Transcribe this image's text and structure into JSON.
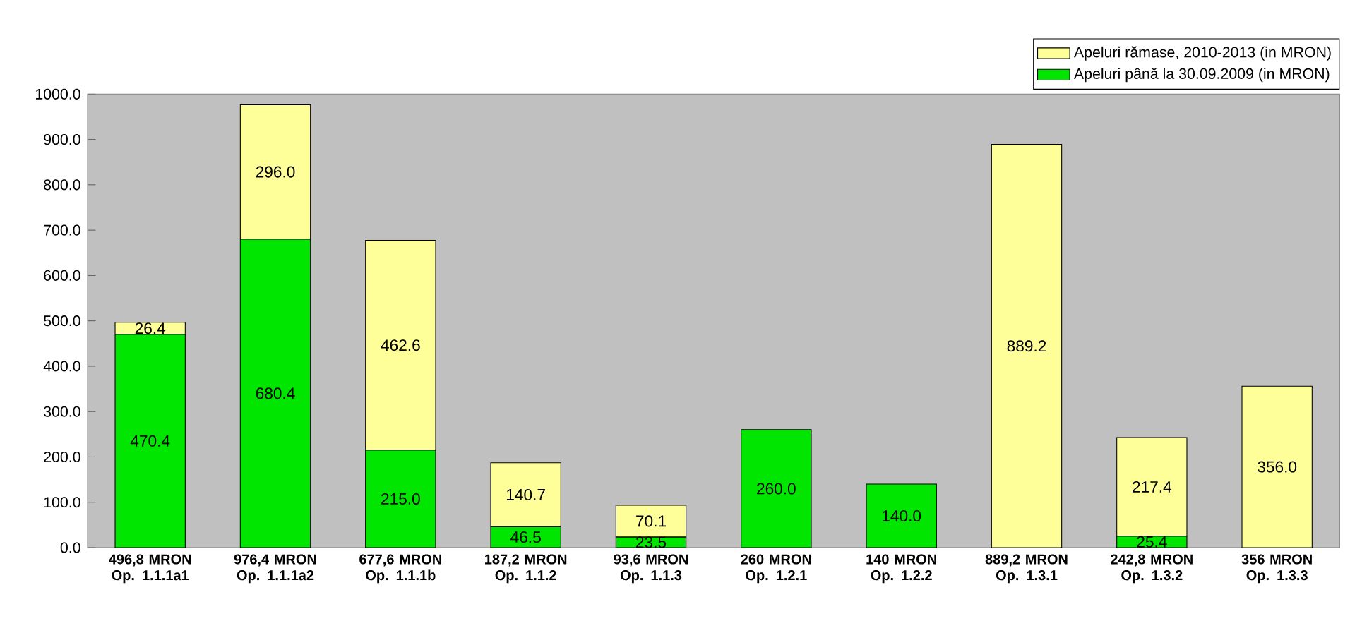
{
  "chart_data": {
    "type": "bar",
    "stacked": true,
    "categories": [
      "496,8 MRON Op. 1.1.1a1",
      "976,4 MRON Op. 1.1.1a2",
      "677,6 MRON Op. 1.1.1b",
      "187,2 MRON Op. 1.1.2",
      "93,6 MRON Op. 1.1.3",
      "260 MRON Op. 1.2.1",
      "140 MRON Op. 1.2.2",
      "889,2 MRON Op. 1.3.1",
      "242,8 MRON Op. 1.3.2",
      "356 MRON Op. 1.3.3"
    ],
    "series": [
      {
        "name": "Apeluri până la 30.09.2009 (in MRON)",
        "color": "#00e600",
        "values": [
          470.4,
          680.4,
          215.0,
          46.5,
          23.5,
          260.0,
          140.0,
          null,
          25.4,
          null
        ],
        "value_labels": [
          "470.4",
          "680.4",
          "215.0",
          "46.5",
          "23.5",
          "260.0",
          "140.0",
          null,
          "25.4",
          null
        ]
      },
      {
        "name": "Apeluri rămase, 2010-2013 (in MRON)",
        "color": "#ffff99",
        "values": [
          26.4,
          296.0,
          462.6,
          140.7,
          70.1,
          null,
          null,
          889.2,
          217.4,
          356.0
        ],
        "value_labels": [
          "26.4",
          "296.0",
          "462.6",
          "140.7",
          "70.1",
          null,
          null,
          "889.2",
          "217.4",
          "356.0"
        ]
      }
    ],
    "ylim": [
      0,
      1000
    ],
    "yticks": [
      {
        "value": 0,
        "label": "0.0"
      },
      {
        "value": 100,
        "label": "100.0"
      },
      {
        "value": 200,
        "label": "200.0"
      },
      {
        "value": 300,
        "label": "300.0"
      },
      {
        "value": 400,
        "label": "400.0"
      },
      {
        "value": 500,
        "label": "500.0"
      },
      {
        "value": 600,
        "label": "600.0"
      },
      {
        "value": 700,
        "label": "700.0"
      },
      {
        "value": 800,
        "label": "800.0"
      },
      {
        "value": 900,
        "label": "900.0"
      },
      {
        "value": 1000,
        "label": "1000.0"
      }
    ],
    "legend": "top right"
  }
}
